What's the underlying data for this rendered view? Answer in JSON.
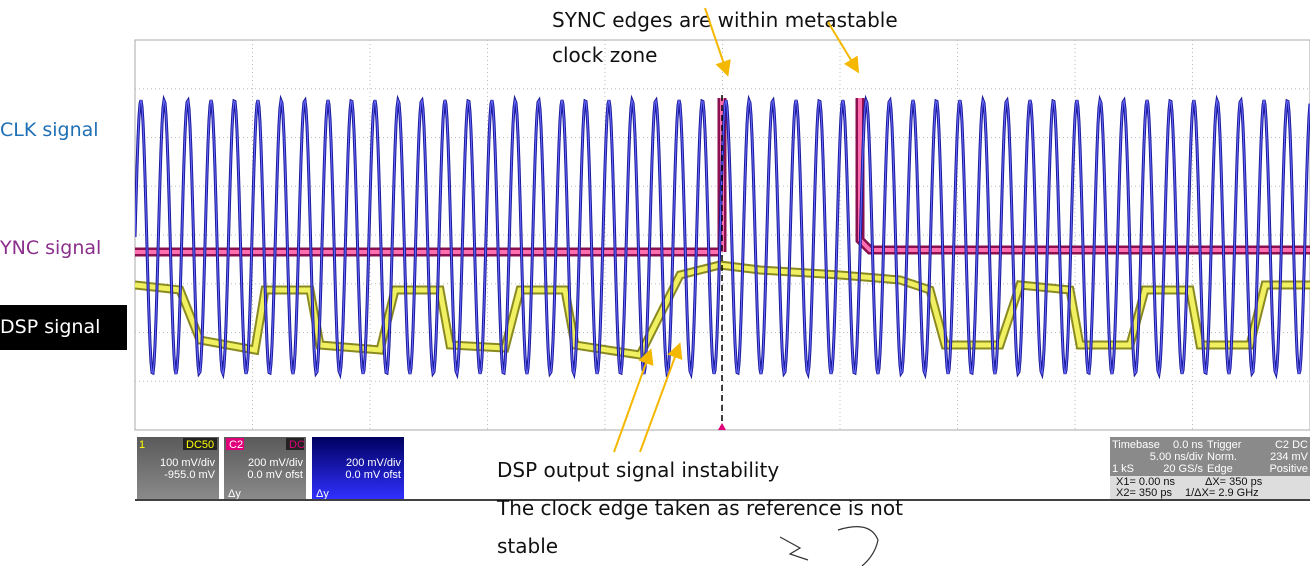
{
  "annotations": {
    "sync_edges": [
      "SYNC edges are within metastable",
      "clock zone"
    ],
    "dsp_instability": [
      "DSP output signal instability",
      "The clock edge taken as reference is not",
      "stable"
    ]
  },
  "signal_labels": {
    "clk": "CLK signal",
    "sync": "YNC signal",
    "dsp": "DSP signal"
  },
  "channels": [
    {
      "id": "1",
      "coupling": "DC50",
      "scale": "100 mV/div",
      "offset": "-955.0 mV"
    },
    {
      "id": "C2",
      "coupling": "DC",
      "scale": "200 mV/div",
      "offset": "0.0 mV ofst"
    },
    {
      "scale": "200 mV/div",
      "offset": "0.0 mV ofst"
    }
  ],
  "delta_label": "Δy",
  "timebase": {
    "label": "Timebase",
    "delay": "0.0 ns",
    "scale": "5.00 ns/div",
    "samples": "1 kS",
    "rate": "20 GS/s"
  },
  "trigger": {
    "label": "Trigger",
    "source": "C2 DC",
    "mode": "Norm.",
    "level": "234 mV",
    "type": "Edge",
    "slope": "Positive"
  },
  "cursors": {
    "x1": "X1= 0.00 ns",
    "dx": "ΔX=  350 ps",
    "x2": "X2=  350 ps",
    "inv_dx": "1/ΔX= 2.9 GHz"
  }
}
